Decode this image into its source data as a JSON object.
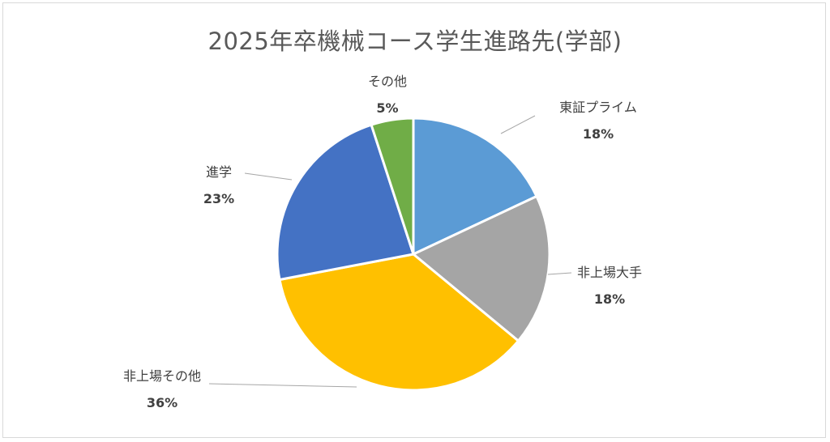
{
  "chart_data": {
    "type": "pie",
    "title": "2025年卒機械コース学生進路先(学部)",
    "slices": [
      {
        "label": "東証プライム",
        "value": 18,
        "display": "18%",
        "color": "#5b9bd5"
      },
      {
        "label": "非上場大手",
        "value": 18,
        "display": "18%",
        "color": "#a5a5a5"
      },
      {
        "label": "非上場その他",
        "value": 36,
        "display": "36%",
        "color": "#ffc000"
      },
      {
        "label": "進学",
        "value": 23,
        "display": "23%",
        "color": "#4472c4"
      },
      {
        "label": "その他",
        "value": 5,
        "display": "5%",
        "color": "#70ad47"
      }
    ],
    "start_angle_deg": 0,
    "direction": "clockwise",
    "legend": "none",
    "data_labels": "outside with leader lines"
  }
}
